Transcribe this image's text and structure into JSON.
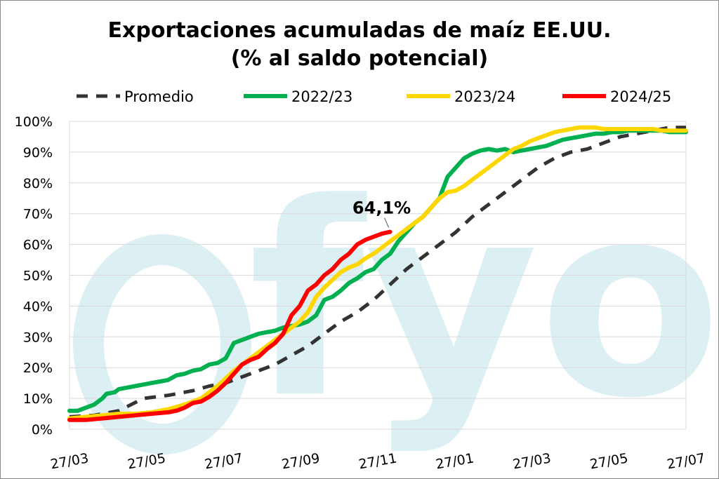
{
  "chart_data": {
    "type": "line",
    "title_line1": "Exportaciones acumuladas de maíz EE.UU.",
    "title_line2": "(% al saldo potencial)",
    "watermark": "fyo",
    "x_ticks": [
      "27/03",
      "27/05",
      "27/07",
      "27/09",
      "27/11",
      "27/01",
      "27/03",
      "27/05",
      "27/07"
    ],
    "y_ticks": [
      "0%",
      "10%",
      "20%",
      "30%",
      "40%",
      "50%",
      "60%",
      "70%",
      "80%",
      "90%",
      "100%"
    ],
    "ylim": [
      0,
      100
    ],
    "x_range_weeks": [
      0,
      75
    ],
    "grid": "horizontal",
    "legend_position": "top",
    "annotation": {
      "label": "64,1%",
      "series": "2024/25",
      "x_week": 41,
      "y": 64.1
    },
    "series": [
      {
        "name": "Promedio",
        "color": "#333333",
        "style": "dashed",
        "points": [
          [
            0,
            4
          ],
          [
            3,
            4.5
          ],
          [
            6,
            6
          ],
          [
            9,
            10
          ],
          [
            12,
            11
          ],
          [
            15,
            12.5
          ],
          [
            17,
            14
          ],
          [
            19,
            15
          ],
          [
            21,
            17
          ],
          [
            23,
            19
          ],
          [
            25,
            21
          ],
          [
            27,
            24
          ],
          [
            29,
            27
          ],
          [
            31,
            31
          ],
          [
            33,
            35
          ],
          [
            35,
            38
          ],
          [
            37,
            42
          ],
          [
            39,
            47
          ],
          [
            41,
            52
          ],
          [
            43,
            56
          ],
          [
            45,
            60
          ],
          [
            47,
            64
          ],
          [
            49,
            69
          ],
          [
            51,
            73
          ],
          [
            53,
            77
          ],
          [
            55,
            81
          ],
          [
            57,
            85
          ],
          [
            59,
            88
          ],
          [
            61,
            90
          ],
          [
            63,
            91
          ],
          [
            65,
            93
          ],
          [
            67,
            95
          ],
          [
            69,
            96
          ],
          [
            71,
            97
          ],
          [
            73,
            98
          ],
          [
            75,
            98
          ]
        ]
      },
      {
        "name": "2022/23",
        "color": "#00b050",
        "style": "solid",
        "points": [
          [
            0,
            6
          ],
          [
            1,
            6
          ],
          [
            2,
            7
          ],
          [
            3,
            8
          ],
          [
            4,
            10
          ],
          [
            4.5,
            11.5
          ],
          [
            5.5,
            12
          ],
          [
            6,
            13
          ],
          [
            7,
            13.5
          ],
          [
            8,
            14
          ],
          [
            9,
            14.5
          ],
          [
            10,
            15
          ],
          [
            11,
            15.5
          ],
          [
            12,
            16
          ],
          [
            13,
            17.5
          ],
          [
            14,
            18
          ],
          [
            15,
            19
          ],
          [
            16,
            19.5
          ],
          [
            17,
            21
          ],
          [
            18,
            21.5
          ],
          [
            19,
            23
          ],
          [
            20,
            28
          ],
          [
            21,
            29
          ],
          [
            22,
            30
          ],
          [
            23,
            31
          ],
          [
            24,
            31.5
          ],
          [
            25,
            32
          ],
          [
            26,
            33
          ],
          [
            27,
            33.5
          ],
          [
            28,
            34
          ],
          [
            29,
            35
          ],
          [
            30,
            37
          ],
          [
            31,
            42
          ],
          [
            32,
            43
          ],
          [
            33,
            45
          ],
          [
            34,
            47.5
          ],
          [
            35,
            49
          ],
          [
            36,
            51
          ],
          [
            37,
            52
          ],
          [
            38,
            55
          ],
          [
            39,
            57
          ],
          [
            40,
            61
          ],
          [
            41,
            64
          ],
          [
            42,
            67
          ],
          [
            43,
            69
          ],
          [
            44,
            72
          ],
          [
            45,
            75
          ],
          [
            46,
            82
          ],
          [
            47,
            85
          ],
          [
            48,
            88
          ],
          [
            49,
            89.5
          ],
          [
            50,
            90.5
          ],
          [
            51,
            91
          ],
          [
            52,
            90.5
          ],
          [
            53,
            91
          ],
          [
            54,
            90
          ],
          [
            55,
            90.5
          ],
          [
            56,
            91
          ],
          [
            57,
            91.5
          ],
          [
            58,
            92
          ],
          [
            59,
            93
          ],
          [
            60,
            94
          ],
          [
            61,
            94.5
          ],
          [
            62,
            95
          ],
          [
            63,
            95.5
          ],
          [
            64,
            96
          ],
          [
            65,
            96
          ],
          [
            66,
            96.5
          ],
          [
            67,
            96.5
          ],
          [
            68,
            97
          ],
          [
            69,
            97
          ],
          [
            70,
            97
          ],
          [
            71,
            97
          ],
          [
            72,
            97
          ],
          [
            73,
            96.5
          ],
          [
            74,
            96.5
          ],
          [
            75,
            96.5
          ]
        ]
      },
      {
        "name": "2023/24",
        "color": "#ffd700",
        "style": "solid",
        "points": [
          [
            0,
            3.5
          ],
          [
            2,
            4
          ],
          [
            4,
            4.5
          ],
          [
            6,
            5
          ],
          [
            8,
            5
          ],
          [
            10,
            5.5
          ],
          [
            12,
            6.5
          ],
          [
            14,
            8
          ],
          [
            16,
            10
          ],
          [
            18,
            14
          ],
          [
            20,
            19
          ],
          [
            22,
            23
          ],
          [
            24,
            27
          ],
          [
            26,
            31
          ],
          [
            28,
            35
          ],
          [
            29,
            38
          ],
          [
            30,
            43
          ],
          [
            31,
            46
          ],
          [
            32,
            48.5
          ],
          [
            33,
            51
          ],
          [
            34,
            52.5
          ],
          [
            35,
            53.5
          ],
          [
            36,
            55.5
          ],
          [
            37,
            57
          ],
          [
            38,
            59
          ],
          [
            39,
            61
          ],
          [
            40,
            63
          ],
          [
            41,
            65
          ],
          [
            42,
            67
          ],
          [
            43,
            69
          ],
          [
            44,
            72
          ],
          [
            45,
            75
          ],
          [
            46,
            77
          ],
          [
            47,
            77.5
          ],
          [
            48,
            79
          ],
          [
            49,
            81
          ],
          [
            50,
            83
          ],
          [
            51,
            85
          ],
          [
            52,
            87
          ],
          [
            53,
            89
          ],
          [
            54,
            91
          ],
          [
            55,
            92
          ],
          [
            56,
            93.5
          ],
          [
            57,
            94.5
          ],
          [
            58,
            95.5
          ],
          [
            59,
            96.5
          ],
          [
            60,
            97
          ],
          [
            61,
            97.5
          ],
          [
            62,
            98
          ],
          [
            63,
            98
          ],
          [
            64,
            98
          ],
          [
            65,
            97.5
          ],
          [
            66,
            97.5
          ],
          [
            67,
            97.5
          ],
          [
            68,
            97.5
          ],
          [
            69,
            97.5
          ],
          [
            70,
            97.5
          ],
          [
            71,
            97.5
          ],
          [
            72,
            97
          ],
          [
            73,
            97
          ],
          [
            74,
            97
          ],
          [
            75,
            97
          ]
        ]
      },
      {
        "name": "2024/25",
        "color": "#ff0000",
        "style": "solid",
        "points": [
          [
            0,
            3
          ],
          [
            2,
            3
          ],
          [
            4,
            3.5
          ],
          [
            6,
            4
          ],
          [
            8,
            4.5
          ],
          [
            10,
            5
          ],
          [
            12,
            5.5
          ],
          [
            13,
            6
          ],
          [
            14,
            7
          ],
          [
            15,
            8.5
          ],
          [
            16,
            9
          ],
          [
            17,
            10.5
          ],
          [
            18,
            12.5
          ],
          [
            19,
            15
          ],
          [
            20,
            18
          ],
          [
            21,
            21
          ],
          [
            22,
            22.5
          ],
          [
            23,
            23.5
          ],
          [
            24,
            26
          ],
          [
            25,
            28
          ],
          [
            26,
            31
          ],
          [
            27,
            37
          ],
          [
            28,
            40
          ],
          [
            29,
            45
          ],
          [
            30,
            47
          ],
          [
            31,
            50
          ],
          [
            32,
            52
          ],
          [
            33,
            55
          ],
          [
            34,
            57
          ],
          [
            35,
            60
          ],
          [
            36,
            61.5
          ],
          [
            37,
            62.5
          ],
          [
            38,
            63.5
          ],
          [
            39,
            64.1
          ]
        ]
      }
    ]
  }
}
